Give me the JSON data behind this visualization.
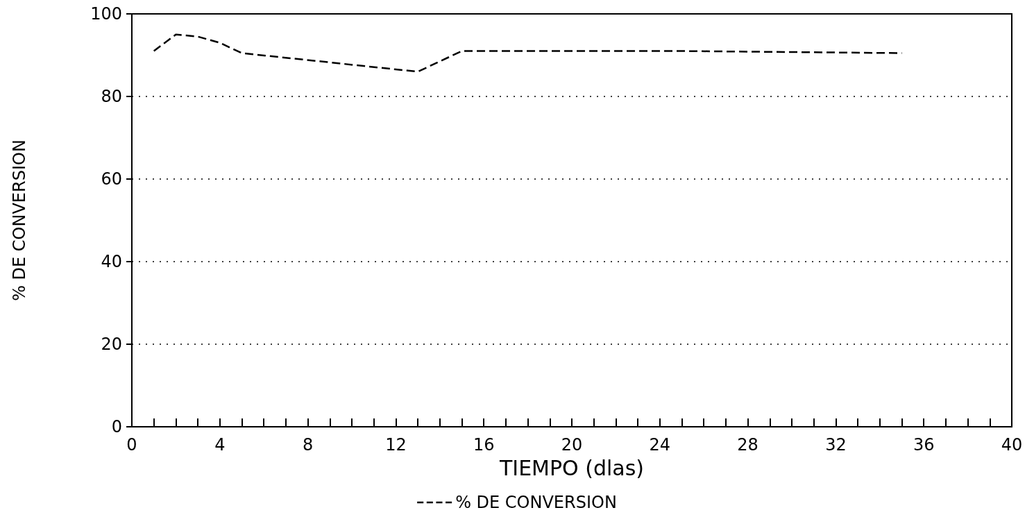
{
  "chart_data": {
    "type": "line",
    "xlabel": "TIEMPO (dlas)",
    "ylabel": "% DE CONVERSION",
    "x": [
      1,
      2,
      3,
      4,
      5,
      13,
      15,
      25,
      35
    ],
    "series": [
      {
        "name": "% DE CONVERSION",
        "color": "#000000",
        "values": [
          91,
          95,
          94.5,
          93,
          90.5,
          86,
          91,
          91,
          90.5
        ]
      }
    ],
    "xlim": [
      0,
      40
    ],
    "xticks": [
      0,
      4,
      8,
      12,
      16,
      20,
      24,
      28,
      32,
      36,
      40
    ],
    "ylim": [
      0,
      100
    ],
    "yticks": [
      0,
      20,
      40,
      60,
      80,
      100
    ],
    "grid": "y",
    "legend": "bottom",
    "line_style": "dashed",
    "marker": "none"
  }
}
